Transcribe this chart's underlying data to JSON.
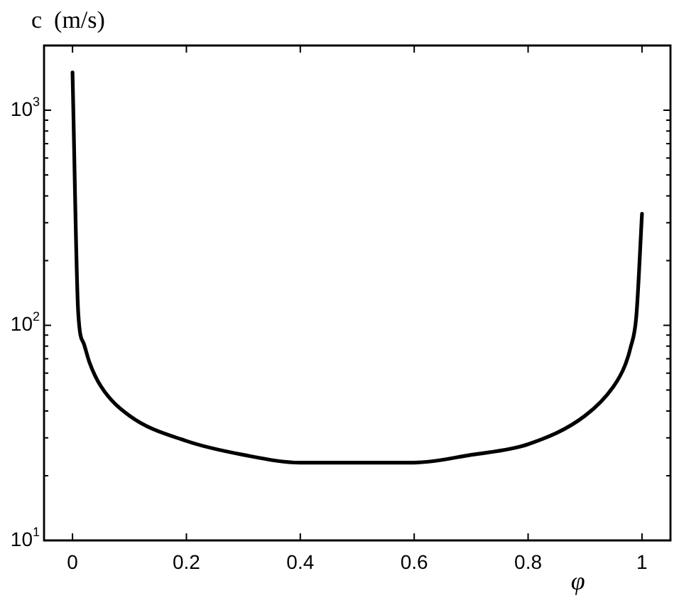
{
  "chart_data": {
    "type": "line",
    "xlabel": "φ",
    "ylabel": "c  (m/s)",
    "x": [
      0,
      0.01,
      0.02,
      0.03,
      0.05,
      0.1,
      0.2,
      0.3,
      0.4,
      0.5,
      0.6,
      0.7,
      0.8,
      0.9,
      0.95,
      0.97,
      0.98,
      0.99,
      1
    ],
    "series": [
      {
        "color": "#000000",
        "values": [
          1500,
          115,
          82,
          67,
          52,
          38,
          29,
          25,
          23,
          23,
          23,
          25,
          28,
          38,
          52,
          65,
          79,
          110,
          330
        ]
      }
    ],
    "log": "y",
    "xlim": [
      -0.05,
      1.05
    ],
    "ylim": [
      10,
      2000
    ],
    "xticks": [
      0,
      0.2,
      0.4,
      0.6,
      0.8,
      1
    ],
    "yticks": [
      {
        "value": 10,
        "label": "10$^{1}$"
      },
      {
        "value": 20,
        "label": null
      },
      {
        "value": 30,
        "label": null
      },
      {
        "value": 40,
        "label": null
      },
      {
        "value": 50,
        "label": null
      },
      {
        "value": 60,
        "label": null
      },
      {
        "value": 70,
        "label": null
      },
      {
        "value": 80,
        "label": null
      },
      {
        "value": 90,
        "label": null
      },
      {
        "value": 100,
        "label": "10$^{2}$"
      },
      {
        "value": 200,
        "label": null
      },
      {
        "value": 300,
        "label": null
      },
      {
        "value": 400,
        "label": null
      },
      {
        "value": 500,
        "label": null
      },
      {
        "value": 600,
        "label": null
      },
      {
        "value": 700,
        "label": null
      },
      {
        "value": 800,
        "label": null
      },
      {
        "value": 900,
        "label": null
      },
      {
        "value": 1000,
        "label": "10$^{3}$"
      }
    ],
    "grid": false,
    "legend": false,
    "marker": "none",
    "line_style": "solid"
  }
}
